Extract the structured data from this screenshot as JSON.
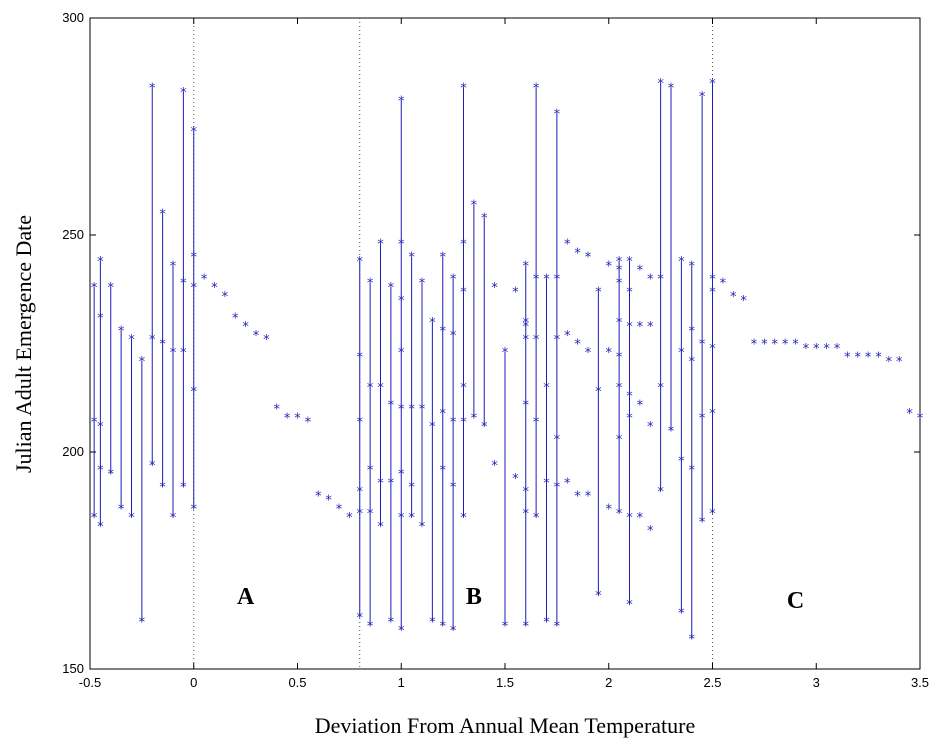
{
  "chart_data": {
    "type": "scatter",
    "xlabel": "Deviation From Annual Mean Temperature",
    "ylabel": "Julian Adult Emergence Date",
    "xlim": [
      -0.5,
      3.5
    ],
    "ylim": [
      150,
      300
    ],
    "xticks": [
      -0.5,
      0,
      0.5,
      1,
      1.5,
      2,
      2.5,
      3,
      3.5
    ],
    "xtick_labels": [
      "-0.5",
      "0",
      "0.5",
      "1",
      "1.5",
      "2",
      "2.5",
      "3",
      "3.5"
    ],
    "yticks": [
      150,
      200,
      250,
      300
    ],
    "ytick_labels": [
      "150",
      "200",
      "250",
      "300"
    ],
    "grid": false,
    "marker_color": "#1f1fb4",
    "marker_glyph": "*",
    "vlines": [
      0,
      0.8,
      2.5
    ],
    "regions": [
      {
        "label": "A",
        "x": 0.25,
        "y": 165
      },
      {
        "label": "B",
        "x": 1.35,
        "y": 165
      },
      {
        "label": "C",
        "x": 2.9,
        "y": 164
      }
    ],
    "stems": [
      {
        "x": -0.48,
        "values": [
          185,
          207,
          238
        ]
      },
      {
        "x": -0.45,
        "values": [
          183,
          196,
          206,
          231,
          244
        ]
      },
      {
        "x": -0.4,
        "values": [
          195,
          238
        ]
      },
      {
        "x": -0.35,
        "values": [
          187,
          228
        ]
      },
      {
        "x": -0.3,
        "values": [
          185,
          226
        ]
      },
      {
        "x": -0.25,
        "values": [
          161,
          221
        ]
      },
      {
        "x": -0.2,
        "values": [
          197,
          226,
          284
        ]
      },
      {
        "x": -0.15,
        "values": [
          192,
          225,
          255
        ]
      },
      {
        "x": -0.1,
        "values": [
          185,
          223,
          243
        ]
      },
      {
        "x": -0.05,
        "values": [
          192,
          223,
          239,
          283
        ]
      },
      {
        "x": 0,
        "values": [
          187,
          214,
          238,
          245,
          274
        ]
      },
      {
        "x": 0.8,
        "values": [
          162,
          186,
          191,
          207,
          222,
          244
        ]
      },
      {
        "x": 0.85,
        "values": [
          160,
          186,
          196,
          215,
          239
        ]
      },
      {
        "x": 0.9,
        "values": [
          183,
          193,
          215,
          248
        ]
      },
      {
        "x": 0.95,
        "values": [
          161,
          193,
          211,
          238
        ]
      },
      {
        "x": 1.0,
        "values": [
          159,
          185,
          195,
          210,
          223,
          235,
          248,
          281
        ]
      },
      {
        "x": 1.05,
        "values": [
          185,
          192,
          210,
          245
        ]
      },
      {
        "x": 1.1,
        "values": [
          183,
          210,
          239
        ]
      },
      {
        "x": 1.15,
        "values": [
          161,
          206,
          230
        ]
      },
      {
        "x": 1.2,
        "values": [
          160,
          196,
          209,
          228,
          245
        ]
      },
      {
        "x": 1.25,
        "values": [
          159,
          192,
          207,
          227,
          240
        ]
      },
      {
        "x": 1.3,
        "values": [
          185,
          207,
          215,
          237,
          248,
          284
        ]
      },
      {
        "x": 1.35,
        "values": [
          208,
          257
        ]
      },
      {
        "x": 1.4,
        "values": [
          206,
          254
        ]
      },
      {
        "x": 1.5,
        "values": [
          160,
          223
        ]
      },
      {
        "x": 1.6,
        "values": [
          160,
          186,
          191,
          211,
          226,
          229,
          230,
          243
        ]
      },
      {
        "x": 1.65,
        "values": [
          185,
          207,
          226,
          240,
          284
        ]
      },
      {
        "x": 1.7,
        "values": [
          161,
          193,
          215,
          240
        ]
      },
      {
        "x": 1.75,
        "values": [
          160,
          192,
          203,
          226,
          240,
          278
        ]
      },
      {
        "x": 1.95,
        "values": [
          167,
          214,
          237
        ]
      },
      {
        "x": 2.05,
        "values": [
          186,
          203,
          215,
          222,
          230,
          239,
          242,
          244
        ]
      },
      {
        "x": 2.1,
        "values": [
          165,
          185,
          208,
          213,
          229,
          237,
          244
        ]
      },
      {
        "x": 2.25,
        "values": [
          191,
          215,
          240,
          285
        ]
      },
      {
        "x": 2.3,
        "values": [
          205,
          284
        ]
      },
      {
        "x": 2.35,
        "values": [
          163,
          198,
          223,
          244
        ]
      },
      {
        "x": 2.4,
        "values": [
          157,
          196,
          221,
          228,
          243
        ]
      },
      {
        "x": 2.45,
        "values": [
          184,
          208,
          225,
          282
        ]
      },
      {
        "x": 2.5,
        "values": [
          186,
          209,
          224,
          237,
          240,
          285
        ]
      }
    ],
    "points": [
      {
        "x": 0.05,
        "y": 240
      },
      {
        "x": 0.1,
        "y": 238
      },
      {
        "x": 0.15,
        "y": 236
      },
      {
        "x": 0.2,
        "y": 231
      },
      {
        "x": 0.25,
        "y": 229
      },
      {
        "x": 0.3,
        "y": 227
      },
      {
        "x": 0.35,
        "y": 226
      },
      {
        "x": 0.4,
        "y": 210
      },
      {
        "x": 0.45,
        "y": 208
      },
      {
        "x": 0.5,
        "y": 208
      },
      {
        "x": 0.55,
        "y": 207
      },
      {
        "x": 0.6,
        "y": 190
      },
      {
        "x": 0.65,
        "y": 189
      },
      {
        "x": 0.7,
        "y": 187
      },
      {
        "x": 0.75,
        "y": 185
      },
      {
        "x": 1.45,
        "y": 238
      },
      {
        "x": 1.45,
        "y": 197
      },
      {
        "x": 1.55,
        "y": 237
      },
      {
        "x": 1.55,
        "y": 194
      },
      {
        "x": 1.8,
        "y": 248
      },
      {
        "x": 1.8,
        "y": 227
      },
      {
        "x": 1.8,
        "y": 193
      },
      {
        "x": 1.85,
        "y": 246
      },
      {
        "x": 1.85,
        "y": 225
      },
      {
        "x": 1.85,
        "y": 190
      },
      {
        "x": 1.9,
        "y": 245
      },
      {
        "x": 1.9,
        "y": 223
      },
      {
        "x": 1.9,
        "y": 190
      },
      {
        "x": 2.0,
        "y": 243
      },
      {
        "x": 2.0,
        "y": 223
      },
      {
        "x": 2.0,
        "y": 187
      },
      {
        "x": 2.15,
        "y": 242
      },
      {
        "x": 2.15,
        "y": 229
      },
      {
        "x": 2.15,
        "y": 211
      },
      {
        "x": 2.15,
        "y": 185
      },
      {
        "x": 2.2,
        "y": 240
      },
      {
        "x": 2.2,
        "y": 229
      },
      {
        "x": 2.2,
        "y": 206
      },
      {
        "x": 2.2,
        "y": 182
      },
      {
        "x": 2.55,
        "y": 239
      },
      {
        "x": 2.6,
        "y": 236
      },
      {
        "x": 2.65,
        "y": 235
      },
      {
        "x": 2.7,
        "y": 225
      },
      {
        "x": 2.75,
        "y": 225
      },
      {
        "x": 2.8,
        "y": 225
      },
      {
        "x": 2.85,
        "y": 225
      },
      {
        "x": 2.9,
        "y": 225
      },
      {
        "x": 2.95,
        "y": 224
      },
      {
        "x": 3.0,
        "y": 224
      },
      {
        "x": 3.05,
        "y": 224
      },
      {
        "x": 3.1,
        "y": 224
      },
      {
        "x": 3.15,
        "y": 222
      },
      {
        "x": 3.2,
        "y": 222
      },
      {
        "x": 3.25,
        "y": 222
      },
      {
        "x": 3.3,
        "y": 222
      },
      {
        "x": 3.35,
        "y": 221
      },
      {
        "x": 3.4,
        "y": 221
      },
      {
        "x": 3.45,
        "y": 209
      },
      {
        "x": 3.5,
        "y": 208
      }
    ]
  }
}
